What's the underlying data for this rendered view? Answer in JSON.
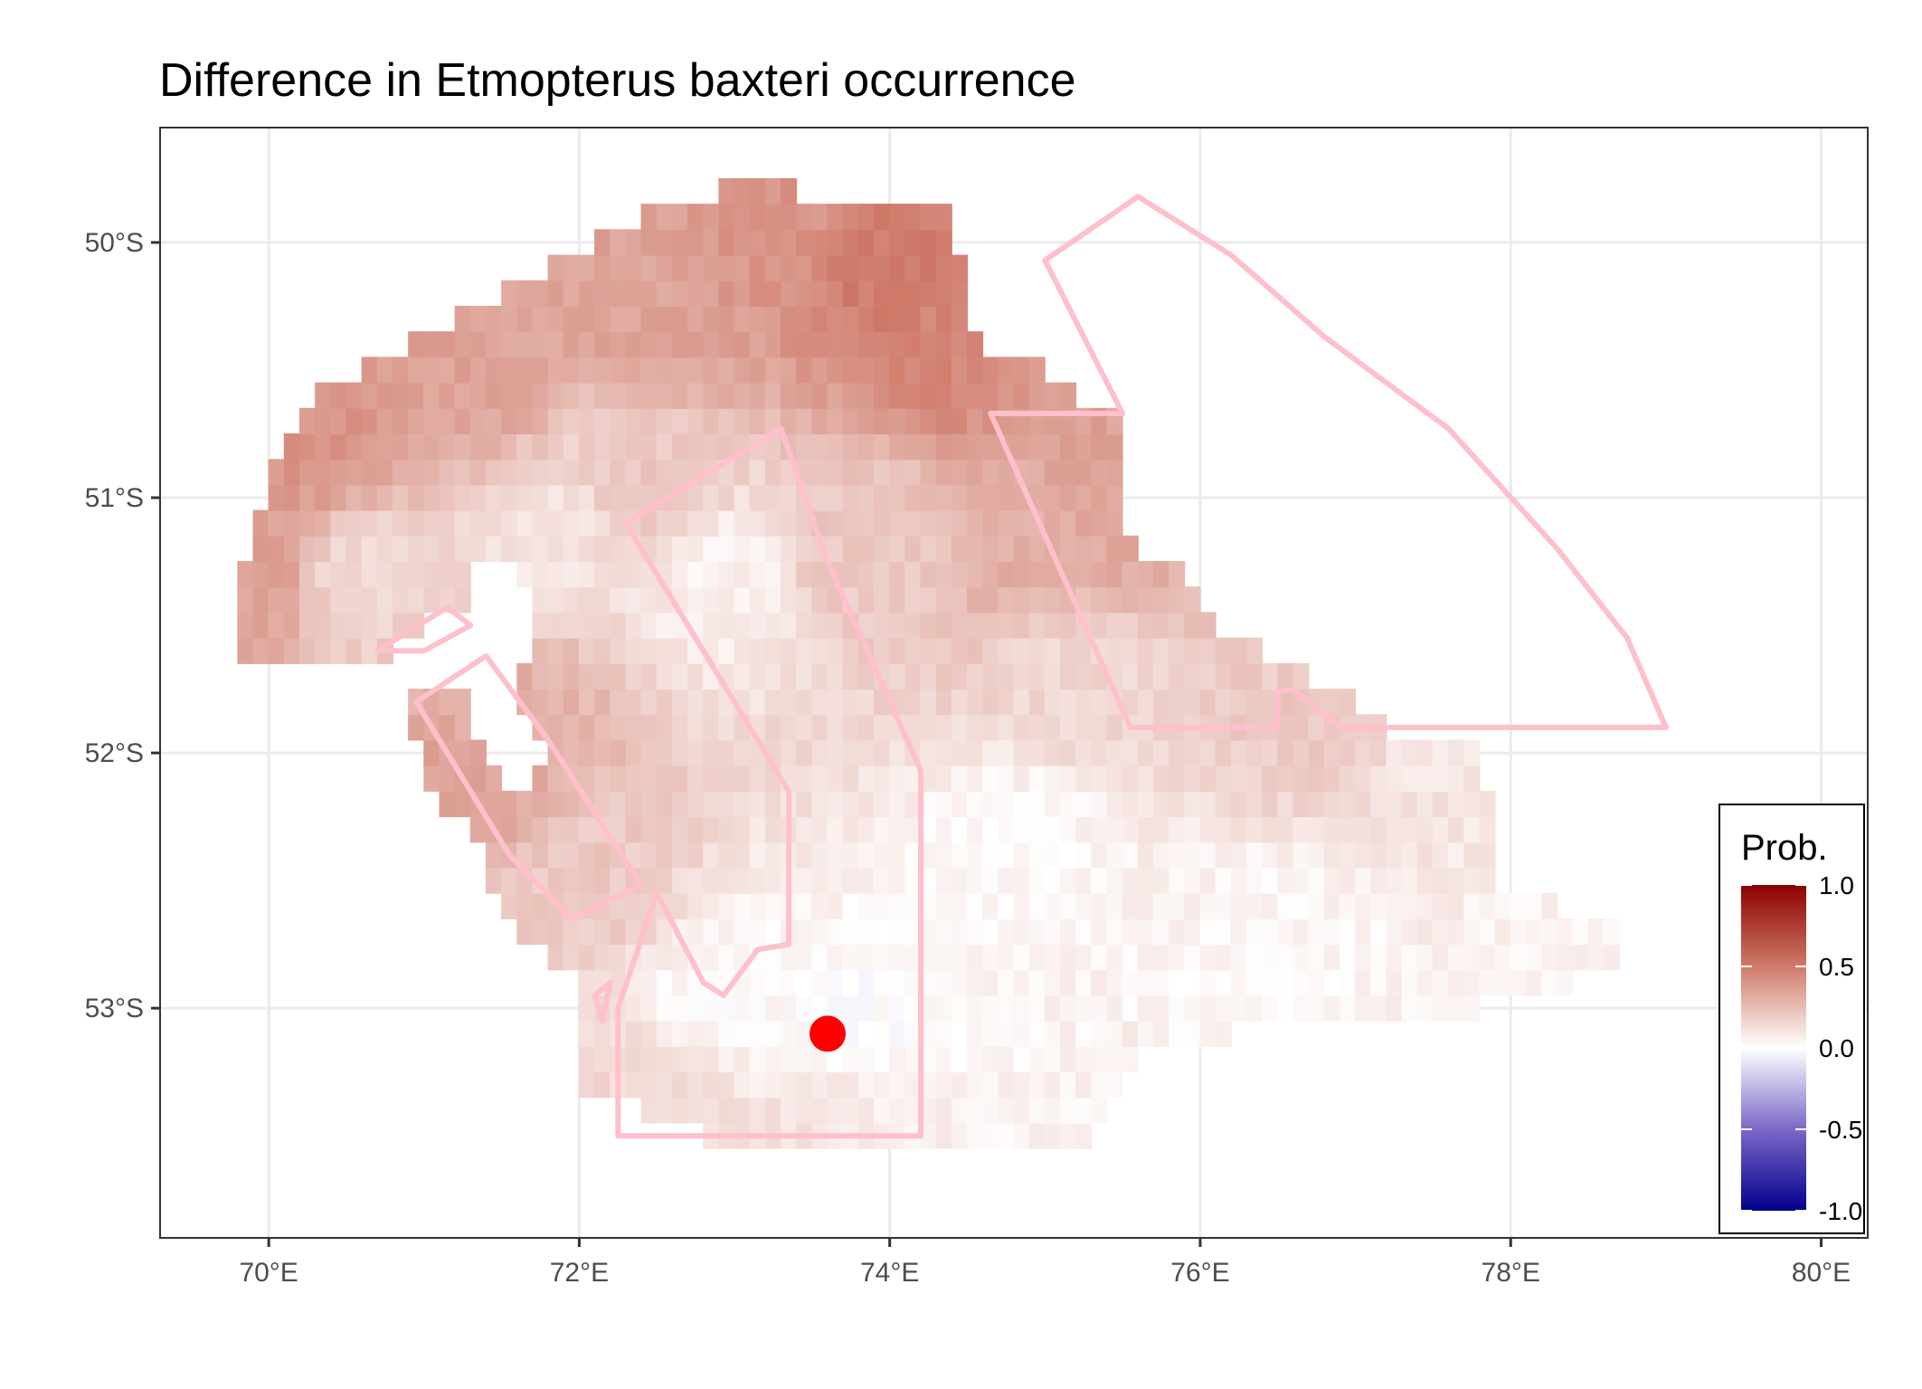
{
  "chart_data": {
    "type": "heatmap",
    "title": "Difference in  Etmopterus baxteri occurrence",
    "x_ticks": [
      {
        "value": 70,
        "label": "70°E"
      },
      {
        "value": 72,
        "label": "72°E"
      },
      {
        "value": 74,
        "label": "74°E"
      },
      {
        "value": 76,
        "label": "76°E"
      },
      {
        "value": 78,
        "label": "78°E"
      },
      {
        "value": 80,
        "label": "80°E"
      }
    ],
    "y_ticks": [
      {
        "value": -50,
        "label": "50°S"
      },
      {
        "value": -51,
        "label": "51°S"
      },
      {
        "value": -52,
        "label": "52°S"
      },
      {
        "value": -53,
        "label": "53°S"
      }
    ],
    "xlim": [
      69.3,
      80.3
    ],
    "ylim": [
      -53.9,
      -49.55
    ],
    "grid": true,
    "colors": {
      "low": "#00008b",
      "mid": "#ffffff",
      "high": "#8b0000",
      "outline": "#ffc0cb",
      "marker": "#ff0000"
    },
    "legend": {
      "title": "Prob.",
      "placement": "bottom-right",
      "limits": [
        -1.0,
        1.0
      ],
      "labels": [
        {
          "value": 1.0,
          "label": "1.0"
        },
        {
          "value": 0.5,
          "label": "0.5"
        },
        {
          "value": 0.0,
          "label": "0.0"
        },
        {
          "value": -0.5,
          "label": "-0.5"
        },
        {
          "value": -1.0,
          "label": "-1.0"
        }
      ]
    },
    "grid_cell": {
      "dlon": 0.1,
      "dlat": 0.1
    },
    "anchors": [
      {
        "lon": 73.4,
        "lat": -49.7,
        "value": 0.4
      },
      {
        "lon": 74.0,
        "lat": -50.1,
        "value": 0.5
      },
      {
        "lon": 74.4,
        "lat": -50.4,
        "value": 0.45
      },
      {
        "lon": 72.6,
        "lat": -50.2,
        "value": 0.35
      },
      {
        "lon": 73.2,
        "lat": -50.0,
        "value": 0.4
      },
      {
        "lon": 70.3,
        "lat": -50.8,
        "value": 0.4
      },
      {
        "lon": 71.2,
        "lat": -50.5,
        "value": 0.35
      },
      {
        "lon": 69.9,
        "lat": -51.3,
        "value": 0.35
      },
      {
        "lon": 70.6,
        "lat": -51.3,
        "value": 0.15
      },
      {
        "lon": 71.8,
        "lat": -51.2,
        "value": 0.1
      },
      {
        "lon": 72.9,
        "lat": -51.3,
        "value": 0.05
      },
      {
        "lon": 72.5,
        "lat": -51.0,
        "value": 0.2
      },
      {
        "lon": 71.5,
        "lat": -51.8,
        "value": 0.3
      },
      {
        "lon": 71.3,
        "lat": -52.1,
        "value": 0.35
      },
      {
        "lon": 72.0,
        "lat": -52.5,
        "value": 0.2
      },
      {
        "lon": 73.8,
        "lat": -51.2,
        "value": 0.2
      },
      {
        "lon": 75.0,
        "lat": -51.2,
        "value": 0.3
      },
      {
        "lon": 75.4,
        "lat": -51.0,
        "value": 0.35
      },
      {
        "lon": 75.2,
        "lat": -51.7,
        "value": 0.15
      },
      {
        "lon": 76.8,
        "lat": -51.8,
        "value": 0.2
      },
      {
        "lon": 77.6,
        "lat": -52.0,
        "value": 0.1
      },
      {
        "lon": 74.8,
        "lat": -52.4,
        "value": 0.02
      },
      {
        "lon": 73.7,
        "lat": -53.1,
        "value": 0.0
      },
      {
        "lon": 72.9,
        "lat": -53.0,
        "value": 0.02
      },
      {
        "lon": 72.6,
        "lat": -53.3,
        "value": 0.15
      },
      {
        "lon": 73.5,
        "lat": -53.4,
        "value": 0.1
      },
      {
        "lon": 75.5,
        "lat": -53.4,
        "value": 0.05
      },
      {
        "lon": 76.5,
        "lat": -52.8,
        "value": 0.03
      },
      {
        "lon": 78.3,
        "lat": -52.7,
        "value": 0.05
      },
      {
        "lon": 75.4,
        "lat": -50.6,
        "value": 0.35
      }
    ],
    "region_outline": [
      [
        72.6,
        -49.85
      ],
      [
        73.2,
        -49.75
      ],
      [
        73.6,
        -49.85
      ],
      [
        74.4,
        -49.9
      ],
      [
        74.55,
        -50.4
      ],
      [
        75.0,
        -50.5
      ],
      [
        75.45,
        -50.7
      ],
      [
        75.55,
        -51.2
      ],
      [
        75.8,
        -51.25
      ],
      [
        76.2,
        -51.55
      ],
      [
        76.6,
        -51.65
      ],
      [
        77.0,
        -51.8
      ],
      [
        77.6,
        -51.85
      ],
      [
        77.8,
        -52.0
      ],
      [
        77.9,
        -52.3
      ],
      [
        77.9,
        -52.5
      ],
      [
        78.5,
        -52.65
      ],
      [
        78.8,
        -52.75
      ],
      [
        78.4,
        -52.9
      ],
      [
        77.8,
        -53.0
      ],
      [
        76.8,
        -53.05
      ],
      [
        75.6,
        -53.15
      ],
      [
        75.3,
        -53.55
      ],
      [
        74.8,
        -53.5
      ],
      [
        74.3,
        -53.5
      ],
      [
        73.8,
        -53.5
      ],
      [
        72.8,
        -53.5
      ],
      [
        71.95,
        -53.3
      ],
      [
        72.0,
        -53.1
      ],
      [
        71.95,
        -52.85
      ],
      [
        71.5,
        -52.65
      ],
      [
        71.4,
        -52.4
      ],
      [
        71.1,
        -52.2
      ],
      [
        70.9,
        -51.85
      ],
      [
        70.9,
        -51.65
      ],
      [
        70.6,
        -51.65
      ],
      [
        69.85,
        -51.65
      ],
      [
        69.8,
        -51.4
      ],
      [
        69.95,
        -51.05
      ],
      [
        70.1,
        -50.8
      ],
      [
        70.25,
        -50.6
      ],
      [
        70.8,
        -50.45
      ],
      [
        71.2,
        -50.3
      ],
      [
        71.7,
        -50.15
      ],
      [
        72.1,
        -50.0
      ]
    ],
    "holes": [
      [
        [
          70.75,
          -51.62
        ],
        [
          71.1,
          -51.45
        ],
        [
          71.3,
          -51.5
        ],
        [
          71.25,
          -51.75
        ],
        [
          71.0,
          -51.8
        ],
        [
          70.85,
          -51.72
        ]
      ],
      [
        [
          71.3,
          -51.3
        ],
        [
          71.55,
          -51.25
        ],
        [
          71.7,
          -51.45
        ],
        [
          71.6,
          -51.8
        ],
        [
          71.75,
          -52.0
        ],
        [
          71.6,
          -52.2
        ],
        [
          71.3,
          -51.95
        ],
        [
          71.2,
          -51.6
        ]
      ]
    ],
    "cutouts": [
      [
        [
          75.0,
          -50.05
        ],
        [
          75.6,
          -49.8
        ],
        [
          76.8,
          -50.3
        ],
        [
          77.6,
          -50.9
        ],
        [
          78.3,
          -51.4
        ],
        [
          79.0,
          -51.9
        ],
        [
          77.2,
          -51.9
        ],
        [
          77.0,
          -51.8
        ],
        [
          76.9,
          -51.7
        ],
        [
          76.6,
          -51.6
        ],
        [
          75.9,
          -51.3
        ],
        [
          75.6,
          -51.0
        ],
        [
          75.5,
          -50.6
        ],
        [
          75.0,
          -50.4
        ]
      ]
    ],
    "boundaries": [
      [
        [
          75.0,
          -50.07
        ],
        [
          75.6,
          -49.82
        ],
        [
          76.2,
          -50.05
        ],
        [
          76.8,
          -50.37
        ],
        [
          77.6,
          -50.73
        ],
        [
          78.3,
          -51.2
        ],
        [
          78.75,
          -51.55
        ],
        [
          79.0,
          -51.9
        ],
        [
          76.9,
          -51.9
        ],
        [
          76.6,
          -51.75
        ],
        [
          76.5,
          -51.76
        ],
        [
          76.5,
          -51.9
        ],
        [
          75.55,
          -51.9
        ],
        [
          74.65,
          -50.67
        ],
        [
          75.5,
          -50.67
        ],
        [
          75.0,
          -50.07
        ]
      ],
      [
        [
          72.3,
          -51.1
        ],
        [
          73.3,
          -50.73
        ],
        [
          73.6,
          -51.25
        ],
        [
          74.2,
          -52.07
        ],
        [
          74.2,
          -53.5
        ],
        [
          72.25,
          -53.5
        ],
        [
          72.25,
          -53.0
        ],
        [
          72.5,
          -52.55
        ],
        [
          72.8,
          -52.9
        ],
        [
          72.93,
          -52.95
        ],
        [
          73.15,
          -52.77
        ],
        [
          73.35,
          -52.75
        ],
        [
          73.35,
          -52.15
        ],
        [
          72.3,
          -51.1
        ]
      ],
      [
        [
          70.7,
          -51.6
        ],
        [
          71.15,
          -51.43
        ],
        [
          71.3,
          -51.5
        ],
        [
          71.0,
          -51.6
        ],
        [
          70.7,
          -51.6
        ]
      ],
      [
        [
          70.95,
          -51.8
        ],
        [
          71.4,
          -51.62
        ],
        [
          71.8,
          -51.95
        ],
        [
          72.4,
          -52.52
        ],
        [
          71.95,
          -52.65
        ],
        [
          71.55,
          -52.4
        ],
        [
          70.95,
          -51.8
        ]
      ],
      [
        [
          72.1,
          -52.95
        ],
        [
          72.2,
          -52.9
        ],
        [
          72.15,
          -53.05
        ],
        [
          72.1,
          -52.95
        ]
      ]
    ],
    "points": [
      {
        "lon": 73.6,
        "lat": -53.1
      }
    ]
  }
}
